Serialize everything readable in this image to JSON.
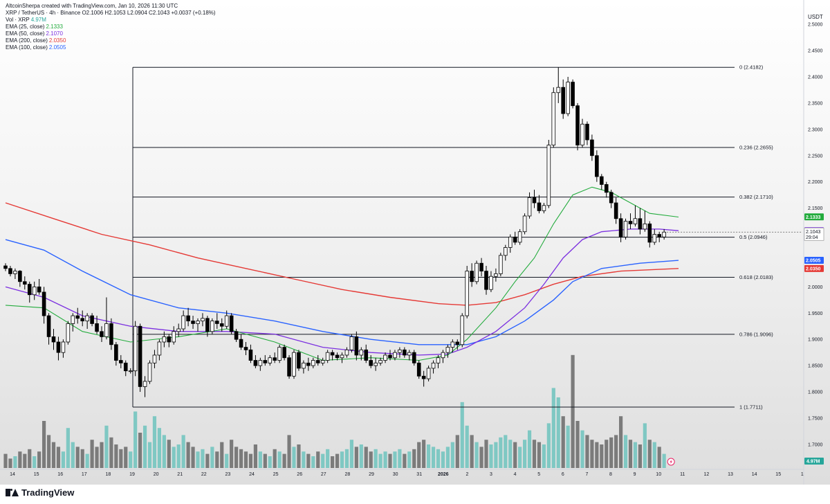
{
  "header": {
    "author_line": "AltcoinSherpa created with TradingView.com, Jan 10, 2026 11:30 UTC",
    "symbol_line": "XRP / TetherUS · 4h · Binance",
    "ohlc": {
      "o_label": "O",
      "o": "2.1006",
      "h_label": "H",
      "h": "2.1053",
      "l_label": "L",
      "l": "2.0904",
      "c_label": "C",
      "c": "2.1043",
      "change": "+0.0037 (+0.18%)"
    }
  },
  "legend": [
    {
      "label": "Vol · XRP",
      "value": "4.97M",
      "color": "#26a69a"
    },
    {
      "label": "EMA (25, close)",
      "value": "2.1333",
      "color": "#22ab3c"
    },
    {
      "label": "EMA (50, close)",
      "value": "2.1070",
      "color": "#7b2fe0"
    },
    {
      "label": "EMA (200, close)",
      "value": "2.0350",
      "color": "#e53935"
    },
    {
      "label": "EMA (100, close)",
      "value": "2.0505",
      "color": "#2962ff"
    }
  ],
  "price_axis_title": "USDT",
  "countdown": "29:04",
  "brand": "TradingView",
  "colors": {
    "up": "#ffffff",
    "down": "#000000",
    "outline": "#000000",
    "vol_up": "#7fc8c3",
    "vol_down": "#7b7b7b",
    "ema25": "#22ab3c",
    "ema50": "#7b2fe0",
    "ema200": "#e53935",
    "ema100": "#2962ff",
    "last_price_badge": "#ffffff",
    "vol_badge": "#26a69a",
    "fib_line": "#131722"
  },
  "chart_data": {
    "type": "candlestick",
    "timeframe": "4h",
    "ylim": [
      1.655,
      2.52
    ],
    "price_ticks": [
      "2.5000",
      "2.4500",
      "2.4000",
      "2.3500",
      "2.3000",
      "2.2500",
      "2.2000",
      "2.1500",
      "2.1000",
      "2.0500",
      "2.0000",
      "1.9500",
      "1.9000",
      "1.8500",
      "1.8000",
      "1.7500",
      "1.7000"
    ],
    "x_ticks": [
      "14",
      "15",
      "16",
      "17",
      "18",
      "19",
      "20",
      "21",
      "22",
      "23",
      "24",
      "25",
      "26",
      "27",
      "28",
      "29",
      "30",
      "31",
      "2026",
      "2",
      "3",
      "4",
      "5",
      "6",
      "7",
      "8",
      "9",
      "10",
      "11",
      "12",
      "13",
      "14",
      "15",
      "1"
    ],
    "fib_levels": [
      {
        "ratio": "0",
        "price": 2.4182,
        "label": "0 (2.4182)"
      },
      {
        "ratio": "0.236",
        "price": 2.2655,
        "label": "0.236 (2.2655)"
      },
      {
        "ratio": "0.382",
        "price": 2.171,
        "label": "0.382 (2.1710)"
      },
      {
        "ratio": "0.5",
        "price": 2.0946,
        "label": "0.5 (2.0946)"
      },
      {
        "ratio": "0.618",
        "price": 2.0183,
        "label": "0.618 (2.0183)"
      },
      {
        "ratio": "0.786",
        "price": 1.9096,
        "label": "0.786 (1.9096)"
      },
      {
        "ratio": "1",
        "price": 1.7711,
        "label": "1 (1.7711)"
      }
    ],
    "ema_badges": [
      {
        "name": "EMA 25",
        "value": "2.1333",
        "price": 2.1333,
        "color": "#22ab3c"
      },
      {
        "name": "EMA 50",
        "value": "2.1070",
        "price": 2.107,
        "color": "#7b2fe0"
      },
      {
        "name": "EMA 100",
        "value": "2.0505",
        "price": 2.0505,
        "color": "#2962ff"
      },
      {
        "name": "EMA 200",
        "value": "2.0350",
        "price": 2.035,
        "color": "#e53935"
      }
    ],
    "last_price": {
      "value": "2.1043",
      "price": 2.1043
    },
    "volume_badge": "4.97M",
    "candles": [
      [
        2.04,
        2.045,
        2.03,
        2.035
      ],
      [
        2.035,
        2.04,
        2.02,
        2.025
      ],
      [
        2.025,
        2.035,
        2.015,
        2.03
      ],
      [
        2.03,
        2.032,
        2.0,
        2.01
      ],
      [
        2.01,
        2.02,
        1.995,
        2.005
      ],
      [
        2.005,
        2.01,
        1.97,
        1.985
      ],
      [
        1.985,
        2.01,
        1.975,
        2.0
      ],
      [
        2.0,
        2.015,
        1.985,
        1.99
      ],
      [
        1.99,
        2.0,
        1.93,
        1.945
      ],
      [
        1.945,
        1.95,
        1.89,
        1.905
      ],
      [
        1.905,
        1.92,
        1.88,
        1.895
      ],
      [
        1.895,
        1.905,
        1.86,
        1.875
      ],
      [
        1.875,
        1.9,
        1.865,
        1.895
      ],
      [
        1.895,
        1.935,
        1.89,
        1.93
      ],
      [
        1.93,
        1.95,
        1.915,
        1.945
      ],
      [
        1.945,
        1.96,
        1.93,
        1.94
      ],
      [
        1.94,
        1.955,
        1.925,
        1.935
      ],
      [
        1.935,
        1.95,
        1.92,
        1.945
      ],
      [
        1.945,
        1.95,
        1.925,
        1.93
      ],
      [
        1.93,
        1.945,
        1.91,
        1.915
      ],
      [
        1.915,
        1.925,
        1.895,
        1.905
      ],
      [
        1.905,
        1.98,
        1.9,
        1.93
      ],
      [
        1.93,
        1.94,
        1.88,
        1.89
      ],
      [
        1.89,
        1.895,
        1.85,
        1.86
      ],
      [
        1.86,
        1.87,
        1.845,
        1.855
      ],
      [
        1.855,
        1.86,
        1.83,
        1.84
      ],
      [
        1.84,
        1.845,
        1.835,
        1.84
      ],
      [
        1.84,
        1.935,
        1.83,
        1.925
      ],
      [
        1.925,
        1.93,
        1.8,
        1.81
      ],
      [
        1.81,
        1.83,
        1.79,
        1.82
      ],
      [
        1.82,
        1.86,
        1.815,
        1.855
      ],
      [
        1.855,
        1.88,
        1.845,
        1.87
      ],
      [
        1.87,
        1.9,
        1.86,
        1.895
      ],
      [
        1.895,
        1.915,
        1.885,
        1.905
      ],
      [
        1.905,
        1.91,
        1.885,
        1.895
      ],
      [
        1.895,
        1.925,
        1.89,
        1.915
      ],
      [
        1.915,
        1.93,
        1.905,
        1.92
      ],
      [
        1.92,
        1.955,
        1.915,
        1.945
      ],
      [
        1.945,
        1.96,
        1.925,
        1.935
      ],
      [
        1.935,
        1.945,
        1.92,
        1.93
      ],
      [
        1.93,
        1.94,
        1.915,
        1.935
      ],
      [
        1.935,
        1.95,
        1.925,
        1.94
      ],
      [
        1.94,
        1.945,
        1.905,
        1.915
      ],
      [
        1.915,
        1.94,
        1.91,
        1.935
      ],
      [
        1.935,
        1.95,
        1.92,
        1.93
      ],
      [
        1.93,
        1.94,
        1.915,
        1.925
      ],
      [
        1.925,
        1.955,
        1.92,
        1.945
      ],
      [
        1.945,
        1.95,
        1.91,
        1.915
      ],
      [
        1.915,
        1.92,
        1.895,
        1.9
      ],
      [
        1.9,
        1.91,
        1.88,
        1.885
      ],
      [
        1.885,
        1.895,
        1.87,
        1.88
      ],
      [
        1.88,
        1.89,
        1.855,
        1.86
      ],
      [
        1.86,
        1.87,
        1.845,
        1.85
      ],
      [
        1.85,
        1.865,
        1.84,
        1.86
      ],
      [
        1.86,
        1.87,
        1.85,
        1.855
      ],
      [
        1.855,
        1.87,
        1.85,
        1.865
      ],
      [
        1.865,
        1.875,
        1.855,
        1.86
      ],
      [
        1.86,
        1.89,
        1.855,
        1.885
      ],
      [
        1.885,
        1.89,
        1.86,
        1.865
      ],
      [
        1.865,
        1.87,
        1.825,
        1.83
      ],
      [
        1.83,
        1.88,
        1.825,
        1.875
      ],
      [
        1.875,
        1.88,
        1.84,
        1.845
      ],
      [
        1.845,
        1.86,
        1.835,
        1.855
      ],
      [
        1.855,
        1.865,
        1.84,
        1.85
      ],
      [
        1.85,
        1.865,
        1.845,
        1.86
      ],
      [
        1.86,
        1.87,
        1.85,
        1.855
      ],
      [
        1.855,
        1.865,
        1.85,
        1.86
      ],
      [
        1.86,
        1.88,
        1.855,
        1.875
      ],
      [
        1.875,
        1.88,
        1.86,
        1.87
      ],
      [
        1.87,
        1.875,
        1.86,
        1.865
      ],
      [
        1.865,
        1.875,
        1.855,
        1.87
      ],
      [
        1.87,
        1.885,
        1.865,
        1.88
      ],
      [
        1.88,
        1.91,
        1.875,
        1.905
      ],
      [
        1.905,
        1.915,
        1.86,
        1.87
      ],
      [
        1.87,
        1.885,
        1.86,
        1.88
      ],
      [
        1.88,
        1.89,
        1.855,
        1.86
      ],
      [
        1.86,
        1.87,
        1.845,
        1.85
      ],
      [
        1.85,
        1.865,
        1.84,
        1.855
      ],
      [
        1.855,
        1.865,
        1.85,
        1.86
      ],
      [
        1.86,
        1.875,
        1.855,
        1.87
      ],
      [
        1.87,
        1.88,
        1.86,
        1.865
      ],
      [
        1.865,
        1.88,
        1.86,
        1.875
      ],
      [
        1.875,
        1.885,
        1.865,
        1.88
      ],
      [
        1.88,
        1.885,
        1.865,
        1.87
      ],
      [
        1.87,
        1.88,
        1.86,
        1.875
      ],
      [
        1.875,
        1.88,
        1.85,
        1.855
      ],
      [
        1.855,
        1.86,
        1.825,
        1.83
      ],
      [
        1.83,
        1.84,
        1.81,
        1.825
      ],
      [
        1.825,
        1.85,
        1.82,
        1.845
      ],
      [
        1.845,
        1.86,
        1.835,
        1.855
      ],
      [
        1.855,
        1.87,
        1.845,
        1.865
      ],
      [
        1.865,
        1.88,
        1.855,
        1.875
      ],
      [
        1.875,
        1.89,
        1.865,
        1.885
      ],
      [
        1.885,
        1.9,
        1.875,
        1.895
      ],
      [
        1.895,
        1.9,
        1.88,
        1.89
      ],
      [
        1.89,
        1.95,
        1.885,
        1.945
      ],
      [
        1.945,
        2.04,
        1.94,
        2.03
      ],
      [
        2.03,
        2.045,
        2.0,
        2.01
      ],
      [
        2.01,
        2.05,
        2.005,
        2.045
      ],
      [
        2.045,
        2.055,
        2.02,
        2.03
      ],
      [
        2.03,
        2.04,
        1.985,
        1.995
      ],
      [
        1.995,
        2.03,
        1.99,
        2.02
      ],
      [
        2.02,
        2.035,
        2.01,
        2.025
      ],
      [
        2.025,
        2.065,
        2.02,
        2.06
      ],
      [
        2.06,
        2.08,
        2.05,
        2.075
      ],
      [
        2.075,
        2.1,
        2.065,
        2.095
      ],
      [
        2.095,
        2.105,
        2.08,
        2.085
      ],
      [
        2.085,
        2.11,
        2.08,
        2.105
      ],
      [
        2.105,
        2.14,
        2.1,
        2.135
      ],
      [
        2.135,
        2.18,
        2.13,
        2.17
      ],
      [
        2.17,
        2.185,
        2.15,
        2.16
      ],
      [
        2.16,
        2.175,
        2.14,
        2.145
      ],
      [
        2.145,
        2.16,
        2.14,
        2.155
      ],
      [
        2.155,
        2.28,
        2.15,
        2.27
      ],
      [
        2.27,
        2.38,
        2.265,
        2.37
      ],
      [
        2.37,
        2.418,
        2.35,
        2.38
      ],
      [
        2.38,
        2.395,
        2.32,
        2.33
      ],
      [
        2.33,
        2.4,
        2.325,
        2.39
      ],
      [
        2.39,
        2.395,
        2.34,
        2.345
      ],
      [
        2.345,
        2.35,
        2.26,
        2.27
      ],
      [
        2.27,
        2.32,
        2.265,
        2.31
      ],
      [
        2.31,
        2.315,
        2.27,
        2.28
      ],
      [
        2.28,
        2.29,
        2.24,
        2.25
      ],
      [
        2.25,
        2.26,
        2.2,
        2.21
      ],
      [
        2.21,
        2.215,
        2.185,
        2.195
      ],
      [
        2.195,
        2.2,
        2.17,
        2.18
      ],
      [
        2.18,
        2.185,
        2.15,
        2.16
      ],
      [
        2.16,
        2.17,
        2.12,
        2.13
      ],
      [
        2.13,
        2.14,
        2.085,
        2.095
      ],
      [
        2.095,
        2.13,
        2.09,
        2.125
      ],
      [
        2.125,
        2.14,
        2.11,
        2.12
      ],
      [
        2.12,
        2.155,
        2.115,
        2.13
      ],
      [
        2.13,
        2.15,
        2.1,
        2.11
      ],
      [
        2.11,
        2.145,
        2.105,
        2.12
      ],
      [
        2.12,
        2.125,
        2.075,
        2.085
      ],
      [
        2.085,
        2.11,
        2.08,
        2.1
      ],
      [
        2.1,
        2.105,
        2.085,
        2.095
      ],
      [
        2.095,
        2.11,
        2.09,
        2.1043
      ]
    ],
    "volumes": [
      0.3,
      0.2,
      0.25,
      0.35,
      0.3,
      0.4,
      0.25,
      0.35,
      1.0,
      0.7,
      0.55,
      0.45,
      0.35,
      0.85,
      0.55,
      0.45,
      0.4,
      0.3,
      0.6,
      0.45,
      0.55,
      0.9,
      0.65,
      0.5,
      0.4,
      0.45,
      0.35,
      1.2,
      0.75,
      0.9,
      0.55,
      1.1,
      0.85,
      0.7,
      0.6,
      0.45,
      0.5,
      0.7,
      0.55,
      0.45,
      0.35,
      0.4,
      0.3,
      0.45,
      0.35,
      0.55,
      0.3,
      0.6,
      0.45,
      0.4,
      0.35,
      0.3,
      0.5,
      0.35,
      0.3,
      0.25,
      0.4,
      0.35,
      0.3,
      0.7,
      0.45,
      0.5,
      0.35,
      0.3,
      0.25,
      0.35,
      0.3,
      0.4,
      0.25,
      0.3,
      0.35,
      0.4,
      0.6,
      0.45,
      0.5,
      0.45,
      0.35,
      0.4,
      0.3,
      0.35,
      0.3,
      0.35,
      0.4,
      0.3,
      0.35,
      0.4,
      0.55,
      0.6,
      0.5,
      0.45,
      0.4,
      0.35,
      0.45,
      0.55,
      0.7,
      1.4,
      0.9,
      0.7,
      0.55,
      0.45,
      0.6,
      0.5,
      0.55,
      0.65,
      0.7,
      0.6,
      0.55,
      0.45,
      0.6,
      0.8,
      0.6,
      0.55,
      0.5,
      0.95,
      1.7,
      1.5,
      1.1,
      0.9,
      2.4,
      1.0,
      0.8,
      0.7,
      0.6,
      0.55,
      0.5,
      0.6,
      0.65,
      0.7,
      1.1,
      0.7,
      0.6,
      0.55,
      0.5,
      0.95,
      0.6,
      0.55,
      0.45,
      0.3
    ],
    "ema25": [
      [
        0,
        1.965
      ],
      [
        8,
        1.96
      ],
      [
        16,
        1.915
      ],
      [
        26,
        1.895
      ],
      [
        36,
        1.905
      ],
      [
        46,
        1.92
      ],
      [
        56,
        1.895
      ],
      [
        66,
        1.86
      ],
      [
        76,
        1.865
      ],
      [
        86,
        1.86
      ],
      [
        92,
        1.87
      ],
      [
        96,
        1.9
      ],
      [
        102,
        1.96
      ],
      [
        106,
        2.01
      ],
      [
        110,
        2.055
      ],
      [
        114,
        2.12
      ],
      [
        118,
        2.175
      ],
      [
        122,
        2.19
      ],
      [
        126,
        2.18
      ],
      [
        130,
        2.16
      ],
      [
        134,
        2.14
      ],
      [
        140,
        2.133
      ]
    ],
    "ema50": [
      [
        0,
        2.0
      ],
      [
        8,
        1.98
      ],
      [
        16,
        1.945
      ],
      [
        26,
        1.925
      ],
      [
        36,
        1.915
      ],
      [
        46,
        1.915
      ],
      [
        56,
        1.91
      ],
      [
        66,
        1.885
      ],
      [
        76,
        1.875
      ],
      [
        86,
        1.87
      ],
      [
        92,
        1.872
      ],
      [
        96,
        1.885
      ],
      [
        102,
        1.915
      ],
      [
        108,
        1.96
      ],
      [
        112,
        2.005
      ],
      [
        116,
        2.055
      ],
      [
        120,
        2.09
      ],
      [
        124,
        2.105
      ],
      [
        130,
        2.11
      ],
      [
        136,
        2.11
      ],
      [
        140,
        2.107
      ]
    ],
    "ema100": [
      [
        0,
        2.09
      ],
      [
        8,
        2.07
      ],
      [
        16,
        2.03
      ],
      [
        26,
        1.985
      ],
      [
        36,
        1.96
      ],
      [
        46,
        1.95
      ],
      [
        56,
        1.935
      ],
      [
        66,
        1.915
      ],
      [
        76,
        1.9
      ],
      [
        86,
        1.89
      ],
      [
        96,
        1.89
      ],
      [
        102,
        1.905
      ],
      [
        108,
        1.935
      ],
      [
        114,
        1.975
      ],
      [
        118,
        2.01
      ],
      [
        124,
        2.035
      ],
      [
        132,
        2.045
      ],
      [
        140,
        2.0505
      ]
    ],
    "ema200": [
      [
        0,
        2.16
      ],
      [
        10,
        2.13
      ],
      [
        20,
        2.1
      ],
      [
        30,
        2.08
      ],
      [
        40,
        2.055
      ],
      [
        50,
        2.035
      ],
      [
        60,
        2.015
      ],
      [
        70,
        1.995
      ],
      [
        80,
        1.98
      ],
      [
        90,
        1.968
      ],
      [
        96,
        1.965
      ],
      [
        102,
        1.97
      ],
      [
        108,
        1.985
      ],
      [
        114,
        2.005
      ],
      [
        120,
        2.02
      ],
      [
        128,
        2.03
      ],
      [
        140,
        2.035
      ]
    ]
  }
}
